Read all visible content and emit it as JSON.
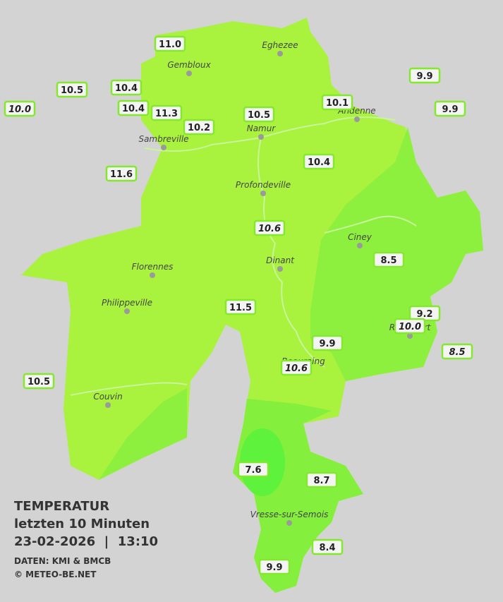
{
  "legend": {
    "title": "TEMPERATUR",
    "period": "letzten 10 Minuten",
    "datetime": "23-02-2026  |  13:10",
    "source": "DATEN: KMI & BMCB",
    "copyright": "© METEO-BE.NET"
  },
  "cities": [
    "Eghezee",
    "Gembloux",
    "Andenne",
    "Namur",
    "Sambreville",
    "Profondeville",
    "Ciney",
    "Dinant",
    "Florennes",
    "Philippeville",
    "Rochefort",
    "Beauraing",
    "Couvin",
    "Vresse-sur-Semois"
  ],
  "stations": [
    {
      "label": "11.0",
      "italic": false
    },
    {
      "label": "10.5",
      "italic": false
    },
    {
      "label": "10.0",
      "italic": true
    },
    {
      "label": "10.4",
      "italic": false
    },
    {
      "label": "10.4",
      "italic": false
    },
    {
      "label": "11.3",
      "italic": false
    },
    {
      "label": "10.2",
      "italic": false
    },
    {
      "label": "10.5",
      "italic": false
    },
    {
      "label": "10.1",
      "italic": false
    },
    {
      "label": "9.9",
      "italic": false
    },
    {
      "label": "9.9",
      "italic": false
    },
    {
      "label": "11.6",
      "italic": false
    },
    {
      "label": "10.4",
      "italic": false
    },
    {
      "label": "10.6",
      "italic": true
    },
    {
      "label": "8.5",
      "italic": false
    },
    {
      "label": "11.5",
      "italic": false
    },
    {
      "label": "9.2",
      "italic": false
    },
    {
      "label": "10.0",
      "italic": true
    },
    {
      "label": "9.9",
      "italic": false
    },
    {
      "label": "8.5",
      "italic": true
    },
    {
      "label": "10.6",
      "italic": true
    },
    {
      "label": "10.5",
      "italic": false
    },
    {
      "label": "7.6",
      "italic": false
    },
    {
      "label": "8.7",
      "italic": false
    },
    {
      "label": "8.4",
      "italic": false
    },
    {
      "label": "9.9",
      "italic": false
    }
  ]
}
